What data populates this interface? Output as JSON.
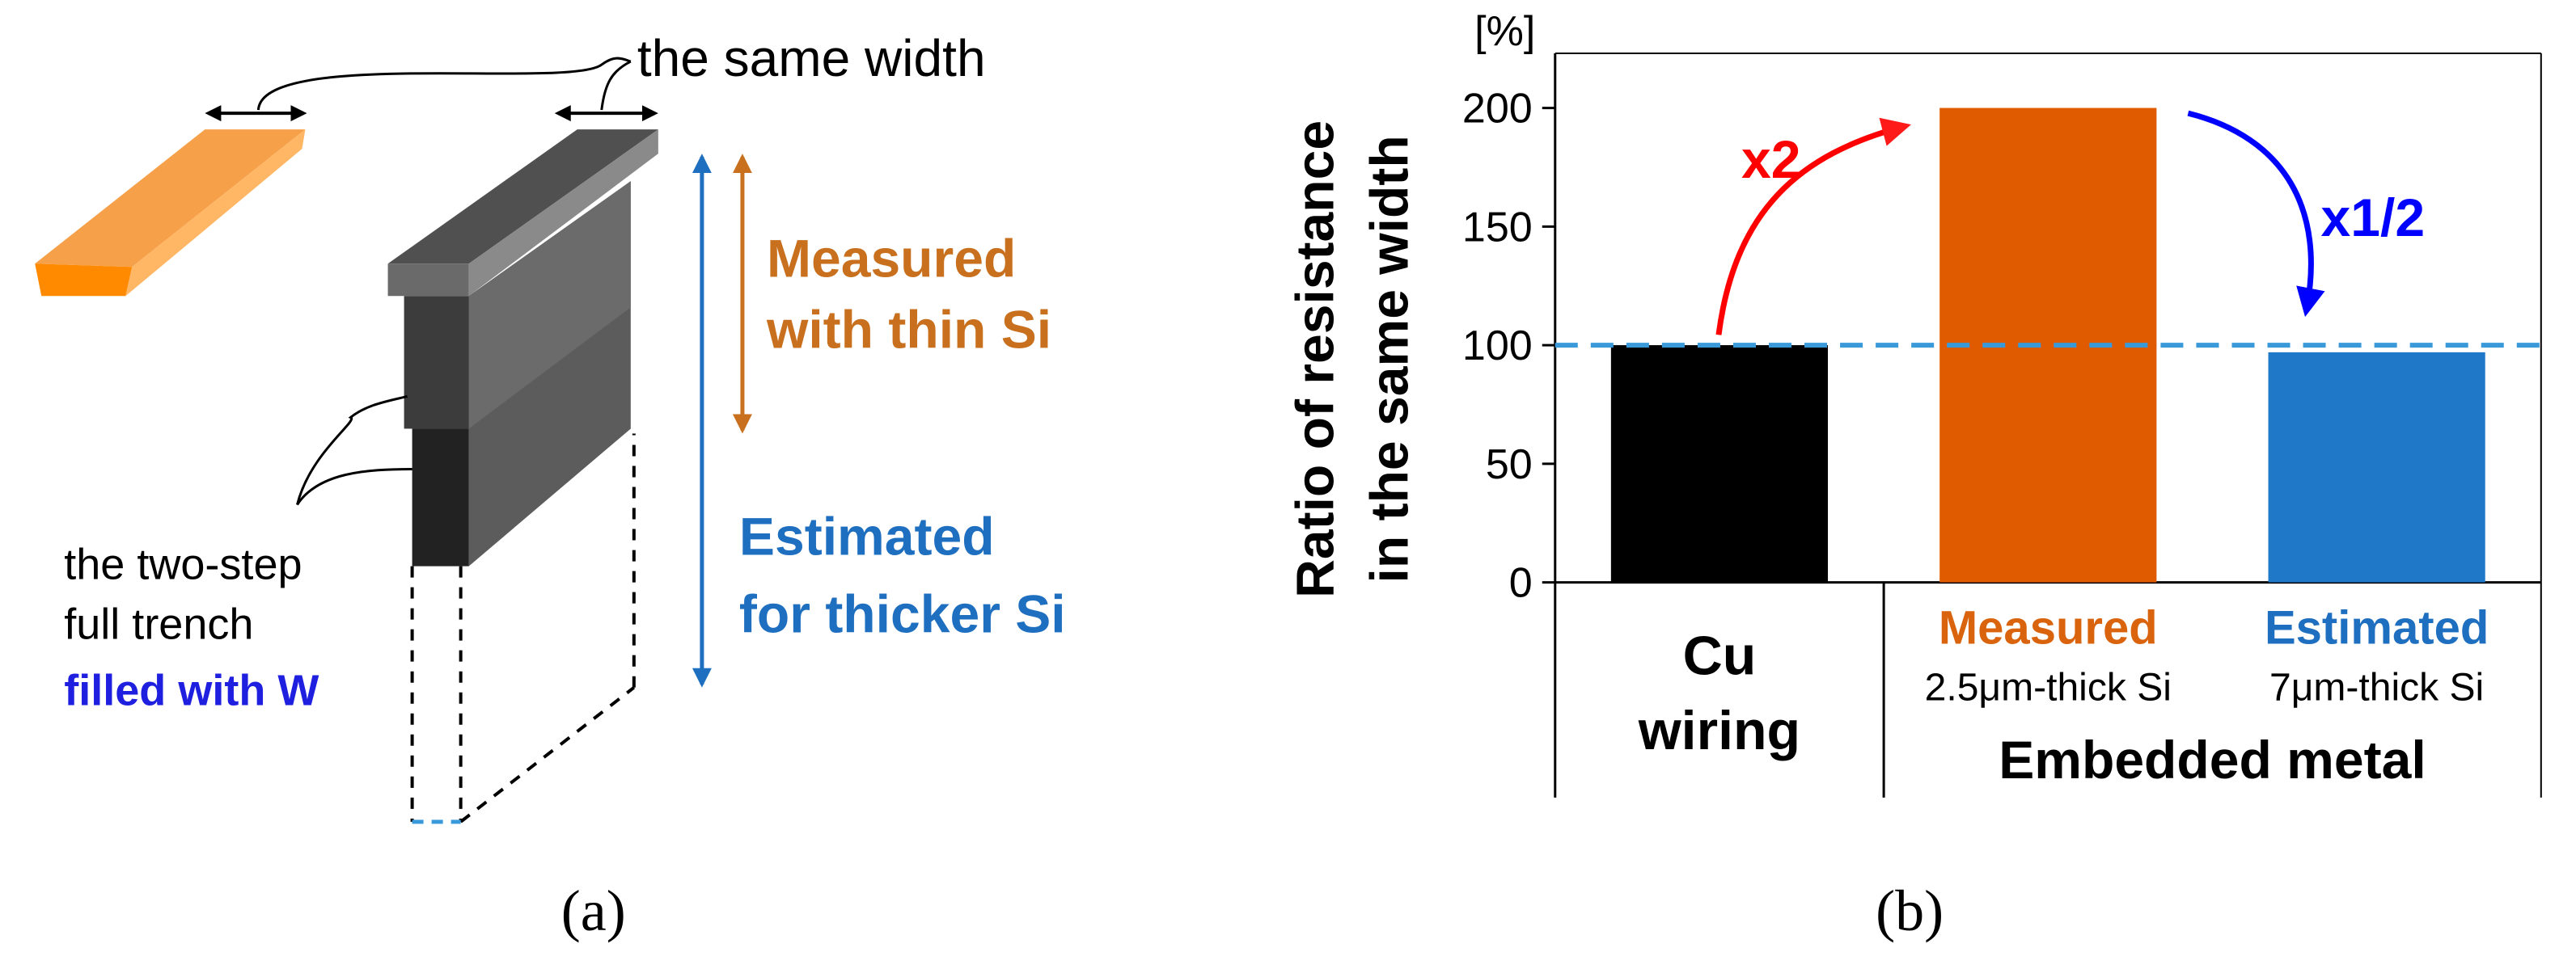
{
  "panel_a": {
    "width_label": "the same width",
    "measured_label": [
      "Measured",
      "with thin Si"
    ],
    "estimated_label": [
      "Estimated",
      "for thicker Si"
    ],
    "trench_label": [
      "the two-step",
      "full trench",
      "filled with W"
    ]
  },
  "chart_data": {
    "type": "bar",
    "unit_label": "[%]",
    "ylabel": [
      "Ratio of resistance",
      "in the same width"
    ],
    "categories": [
      "Cu wiring",
      "Measured",
      "Estimated"
    ],
    "sublabels": [
      null,
      "2.5μm-thick Si",
      "7μm-thick Si"
    ],
    "category_colors": [
      "#000000",
      "#d9640d",
      "#1f6fc0"
    ],
    "group_label": "Embedded metal",
    "values": [
      100,
      200,
      97
    ],
    "colors": [
      "#000000",
      "#e05a00",
      "#1f78c8"
    ],
    "ylim": [
      0,
      223
    ],
    "yticks": [
      0,
      50,
      100,
      150,
      200
    ],
    "reference_line": {
      "value": 100,
      "color": "#3a9ad9"
    },
    "annotations": [
      {
        "text": "x2",
        "color": "#ff0000"
      },
      {
        "text": "x1/2",
        "color": "#0000ff"
      }
    ]
  },
  "captions": [
    "(a)",
    "(b)"
  ]
}
